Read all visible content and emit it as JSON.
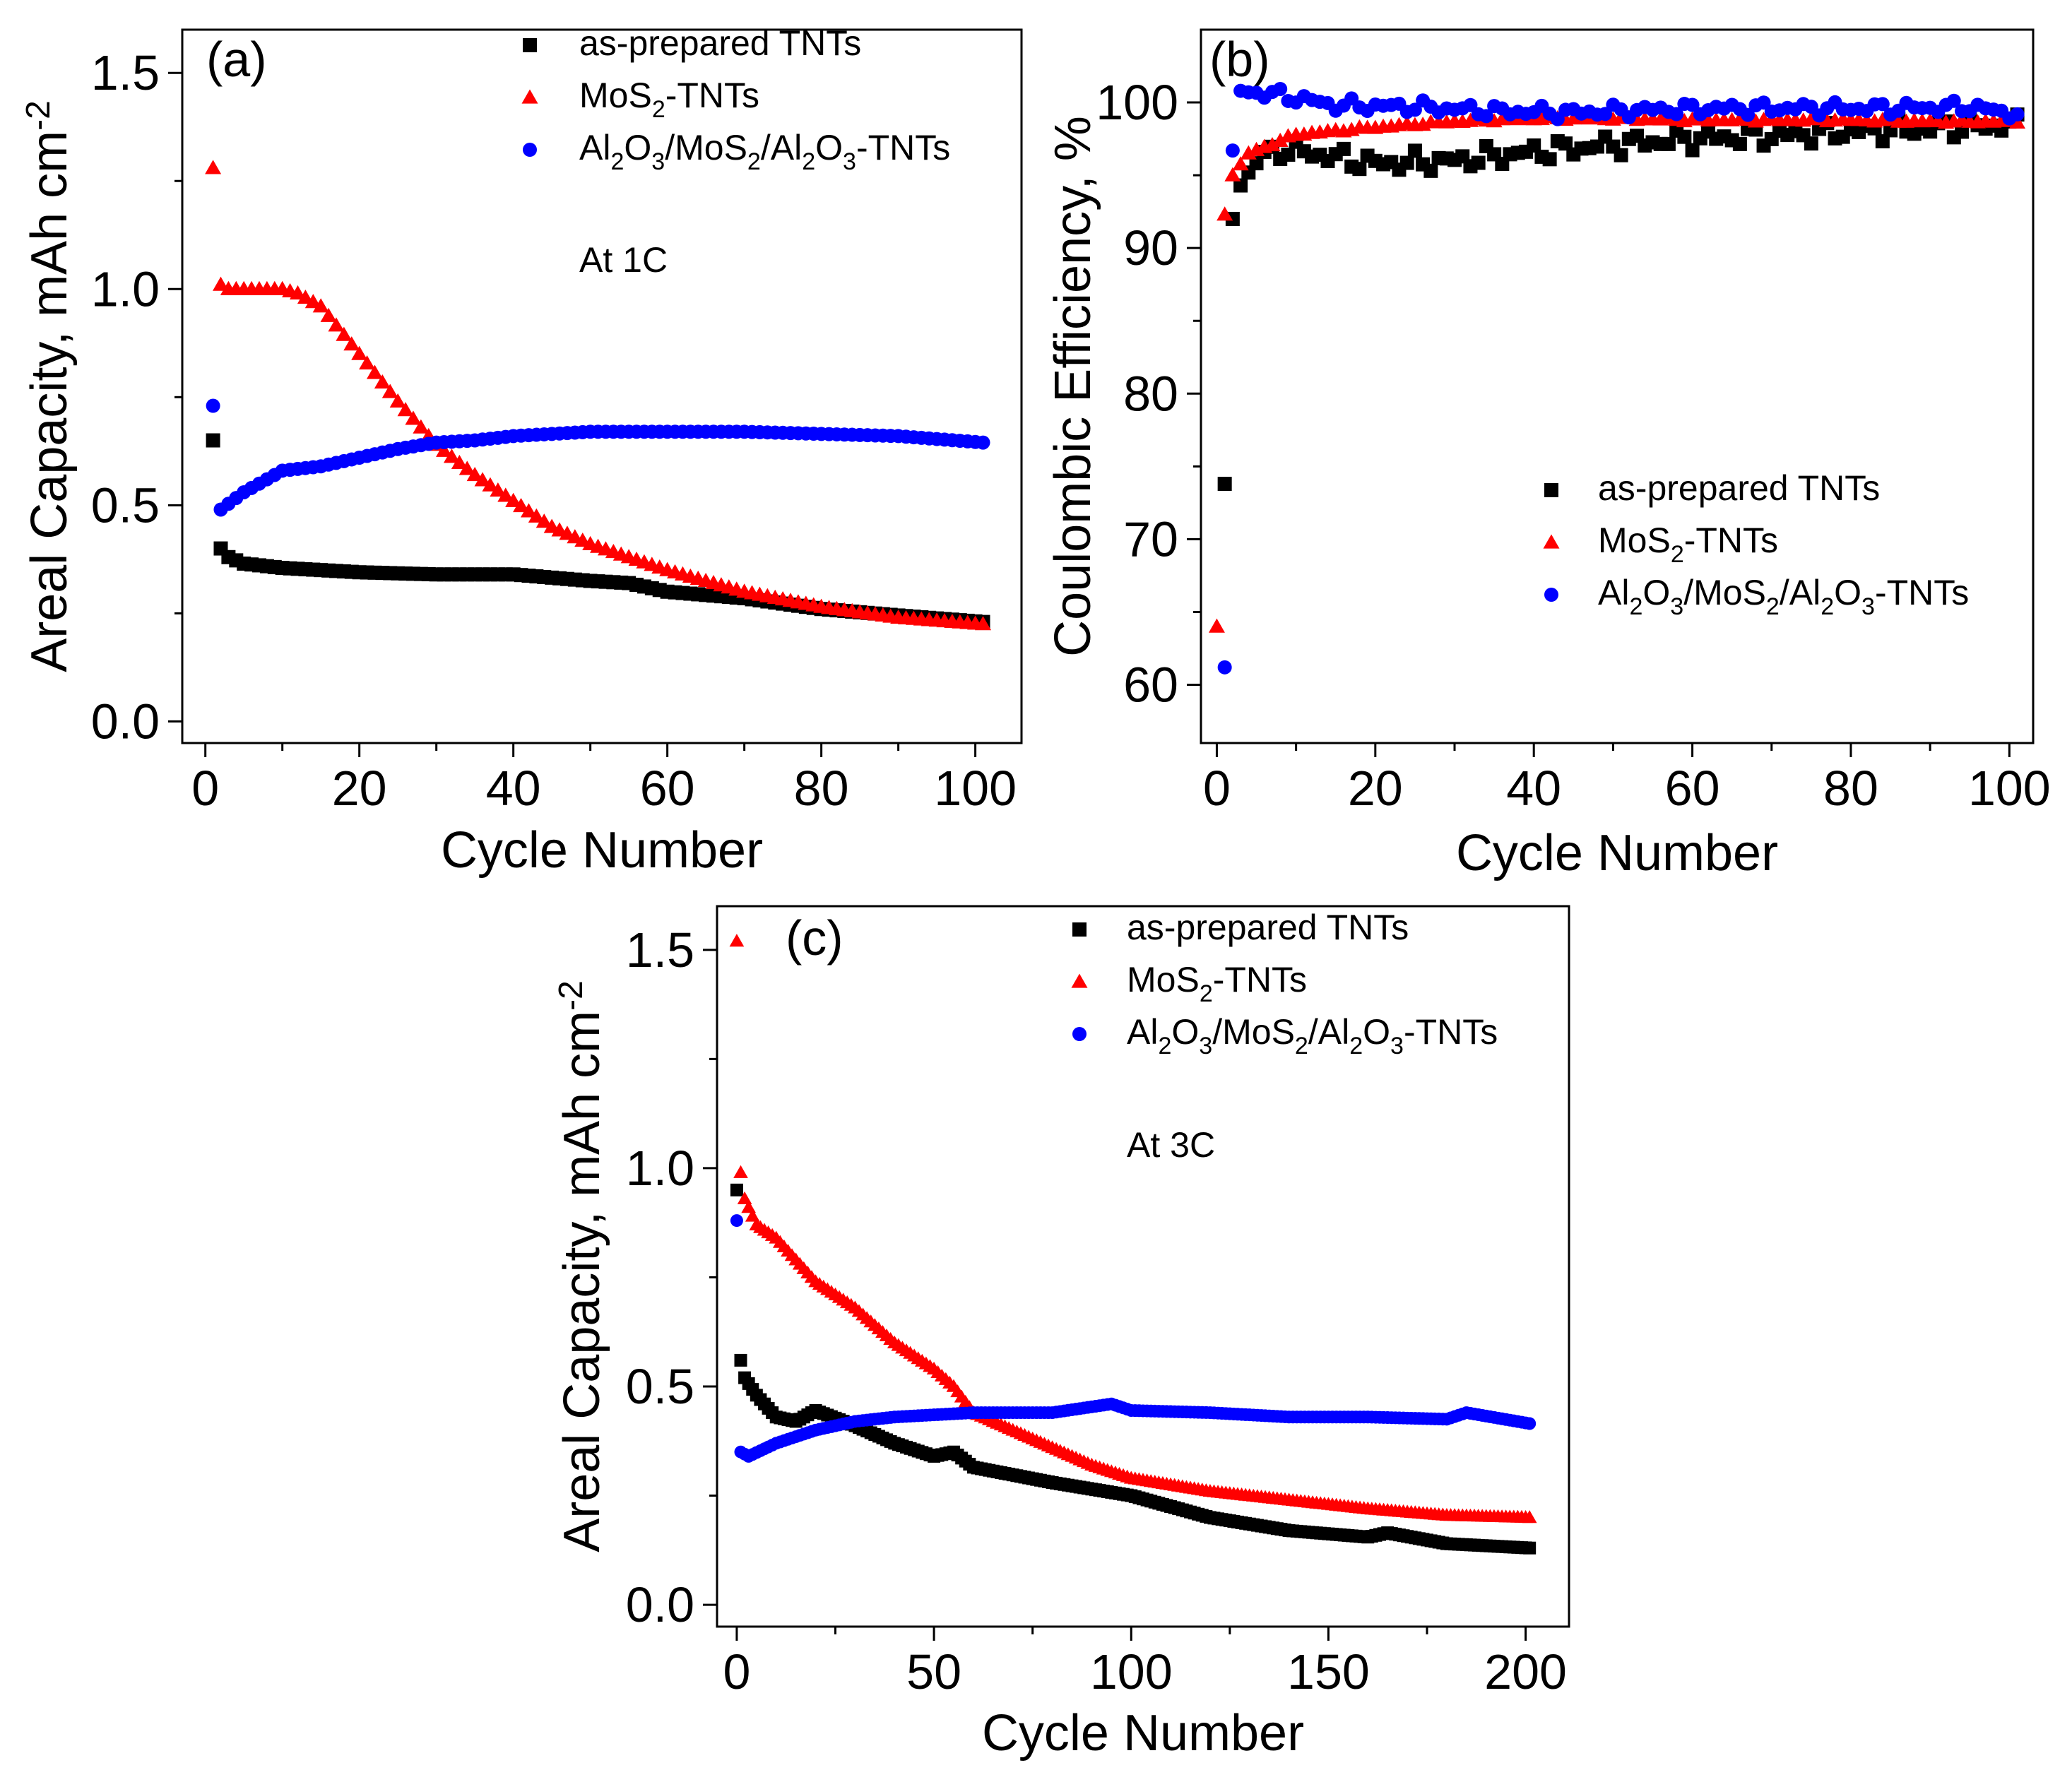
{
  "chart_data": [
    {
      "panel": "(a)",
      "type": "scatter",
      "note": "At 1C",
      "xlabel": "Cycle Number",
      "ylabel": "Areal Capacity, mAh cm-2",
      "ylabel_main": "Areal Capacity, mAh cm",
      "ylabel_sup": "-2",
      "xlim": [
        -3,
        106
      ],
      "ylim": [
        -0.05,
        1.6
      ],
      "xticks": [
        0,
        20,
        40,
        60,
        80,
        100
      ],
      "xtick_labels": [
        "0",
        "20",
        "40",
        "60",
        "80",
        "100"
      ],
      "yticks": [
        0.0,
        0.5,
        1.0,
        1.5
      ],
      "ytick_labels": [
        "0.0",
        "0.5",
        "1.0",
        "1.5"
      ],
      "legend": [
        {
          "label": "as-prepared TNTs",
          "parts": [
            [
              "as-prepared TNTs",
              ""
            ]
          ]
        },
        {
          "label": "MoS2-TNTs",
          "parts": [
            [
              "MoS",
              ""
            ],
            [
              "2",
              "sub"
            ],
            [
              "-TNTs",
              ""
            ]
          ]
        },
        {
          "label": "Al2O3/MoS2/Al2O3-TNTs",
          "parts": [
            [
              "Al",
              ""
            ],
            [
              "2",
              "sub"
            ],
            [
              "O",
              ""
            ],
            [
              "3",
              "sub"
            ],
            [
              "/MoS",
              ""
            ],
            [
              "2",
              "sub"
            ],
            [
              "/Al",
              ""
            ],
            [
              "2",
              "sub"
            ],
            [
              "O",
              ""
            ],
            [
              "3",
              "sub"
            ],
            [
              "-TNTs",
              ""
            ]
          ]
        }
      ],
      "series": [
        {
          "name": "as-prepared TNTs",
          "color": "#000000",
          "marker": "square",
          "anchors": [
            [
              1,
              0.65
            ],
            [
              2,
              0.4
            ],
            [
              3,
              0.38
            ],
            [
              5,
              0.365
            ],
            [
              10,
              0.355
            ],
            [
              20,
              0.345
            ],
            [
              30,
              0.34
            ],
            [
              40,
              0.34
            ],
            [
              50,
              0.325
            ],
            [
              55,
              0.32
            ],
            [
              60,
              0.3
            ],
            [
              70,
              0.285
            ],
            [
              80,
              0.26
            ],
            [
              90,
              0.245
            ],
            [
              101,
              0.23
            ]
          ]
        },
        {
          "name": "MoS2-TNTs",
          "color": "#ff0000",
          "marker": "triangle",
          "anchors": [
            [
              1,
              1.28
            ],
            [
              2,
              1.01
            ],
            [
              3,
              1.0
            ],
            [
              5,
              1.0
            ],
            [
              10,
              1.0
            ],
            [
              12,
              0.99
            ],
            [
              15,
              0.96
            ],
            [
              20,
              0.85
            ],
            [
              25,
              0.74
            ],
            [
              30,
              0.64
            ],
            [
              35,
              0.57
            ],
            [
              40,
              0.51
            ],
            [
              45,
              0.45
            ],
            [
              50,
              0.41
            ],
            [
              60,
              0.35
            ],
            [
              70,
              0.3
            ],
            [
              80,
              0.265
            ],
            [
              90,
              0.24
            ],
            [
              101,
              0.225
            ]
          ]
        },
        {
          "name": "Al2O3/MoS2/Al2O3-TNTs",
          "color": "#0000ff",
          "marker": "circle",
          "anchors": [
            [
              1,
              0.73
            ],
            [
              2,
              0.49
            ],
            [
              5,
              0.53
            ],
            [
              10,
              0.58
            ],
            [
              15,
              0.59
            ],
            [
              20,
              0.61
            ],
            [
              25,
              0.63
            ],
            [
              30,
              0.645
            ],
            [
              35,
              0.65
            ],
            [
              40,
              0.66
            ],
            [
              50,
              0.67
            ],
            [
              60,
              0.67
            ],
            [
              70,
              0.67
            ],
            [
              80,
              0.665
            ],
            [
              90,
              0.66
            ],
            [
              101,
              0.645
            ]
          ]
        }
      ]
    },
    {
      "panel": "(b)",
      "type": "scatter",
      "note": "",
      "xlabel": "Cycle Number",
      "ylabel": "Coulombic Efficiency, %",
      "ylabel_main": "Coulombic Efficiency, %",
      "ylabel_sup": "",
      "xlim": [
        -2,
        103
      ],
      "ylim": [
        56,
        105
      ],
      "xticks": [
        0,
        20,
        40,
        60,
        80,
        100
      ],
      "xtick_labels": [
        "0",
        "20",
        "40",
        "60",
        "80",
        "100"
      ],
      "yticks": [
        60,
        70,
        80,
        90,
        100
      ],
      "ytick_labels": [
        "60",
        "70",
        "80",
        "90",
        "100"
      ],
      "legend": [
        {
          "label": "as-prepared TNTs",
          "parts": [
            [
              "as-prepared TNTs",
              ""
            ]
          ]
        },
        {
          "label": "MoS2-TNTs",
          "parts": [
            [
              "MoS",
              ""
            ],
            [
              "2",
              "sub"
            ],
            [
              "-TNTs",
              ""
            ]
          ]
        },
        {
          "label": "Al2O3/MoS2/Al2O3-TNTs",
          "parts": [
            [
              "Al",
              ""
            ],
            [
              "2",
              "sub"
            ],
            [
              "O",
              ""
            ],
            [
              "3",
              "sub"
            ],
            [
              "/MoS",
              ""
            ],
            [
              "2",
              "sub"
            ],
            [
              "/Al",
              ""
            ],
            [
              "2",
              "sub"
            ],
            [
              "O",
              ""
            ],
            [
              "3",
              "sub"
            ],
            [
              "-TNTs",
              ""
            ]
          ]
        }
      ],
      "series": [
        {
          "name": "as-prepared TNTs",
          "color": "#000000",
          "marker": "square",
          "anchors": [
            [
              1,
              73.8
            ],
            [
              2,
              92
            ],
            [
              3,
              94.3
            ],
            [
              5,
              96
            ],
            [
              8,
              96.8
            ],
            [
              12,
              96.5
            ],
            [
              20,
              95.8
            ],
            [
              30,
              96
            ],
            [
              40,
              96.6
            ],
            [
              50,
              97.1
            ],
            [
              60,
              97.5
            ],
            [
              70,
              97.7
            ],
            [
              80,
              98
            ],
            [
              90,
              98.2
            ],
            [
              101,
              98.5
            ]
          ]
        },
        {
          "name": "MoS2-TNTs",
          "color": "#ff0000",
          "marker": "triangle",
          "anchors": [
            [
              0,
              64
            ],
            [
              1,
              92.3
            ],
            [
              2,
              95
            ],
            [
              4,
              96.5
            ],
            [
              10,
              97.8
            ],
            [
              20,
              98.3
            ],
            [
              30,
              98.7
            ],
            [
              40,
              98.9
            ],
            [
              50,
              98.9
            ],
            [
              60,
              98.8
            ],
            [
              70,
              98.8
            ],
            [
              80,
              98.8
            ],
            [
              90,
              98.7
            ],
            [
              101,
              98.7
            ]
          ]
        },
        {
          "name": "Al2O3/MoS2/Al2O3-TNTs",
          "color": "#0000ff",
          "marker": "circle",
          "anchors": [
            [
              1,
              61.2
            ],
            [
              2,
              96.7
            ],
            [
              3,
              100.8
            ],
            [
              8,
              100.5
            ],
            [
              15,
              99.8
            ],
            [
              25,
              99.7
            ],
            [
              35,
              99.4
            ],
            [
              45,
              99.3
            ],
            [
              55,
              99.5
            ],
            [
              65,
              99.6
            ],
            [
              75,
              99.6
            ],
            [
              85,
              99.6
            ],
            [
              95,
              99.7
            ],
            [
              101,
              99.2
            ]
          ]
        }
      ]
    },
    {
      "panel": "(c)",
      "type": "scatter",
      "note": "At 3C",
      "xlabel": "Cycle Number",
      "ylabel": "Areal Capacity, mAh cm-2",
      "ylabel_main": "Areal Capacity, mAh cm",
      "ylabel_sup": "-2",
      "xlim": [
        -5,
        211
      ],
      "ylim": [
        -0.05,
        1.6
      ],
      "xticks": [
        0,
        50,
        100,
        150,
        200
      ],
      "xtick_labels": [
        "0",
        "50",
        "100",
        "150",
        "200"
      ],
      "yticks": [
        0.0,
        0.5,
        1.0,
        1.5
      ],
      "ytick_labels": [
        "0.0",
        "0.5",
        "1.0",
        "1.5"
      ],
      "legend": [
        {
          "label": "as-prepared TNTs",
          "parts": [
            [
              "as-prepared TNTs",
              ""
            ]
          ]
        },
        {
          "label": "MoS2-TNTs",
          "parts": [
            [
              "MoS",
              ""
            ],
            [
              "2",
              "sub"
            ],
            [
              "-TNTs",
              ""
            ]
          ]
        },
        {
          "label": "Al2O3/MoS2/Al2O3-TNTs",
          "parts": [
            [
              "Al",
              ""
            ],
            [
              "2",
              "sub"
            ],
            [
              "O",
              ""
            ],
            [
              "3",
              "sub"
            ],
            [
              "/MoS",
              ""
            ],
            [
              "2",
              "sub"
            ],
            [
              "/Al",
              ""
            ],
            [
              "2",
              "sub"
            ],
            [
              "O",
              ""
            ],
            [
              "3",
              "sub"
            ],
            [
              "-TNTs",
              ""
            ]
          ]
        }
      ],
      "series": [
        {
          "name": "as-prepared TNTs",
          "color": "#000000",
          "marker": "square",
          "anchors": [
            [
              0,
              0.95
            ],
            [
              1,
              0.56
            ],
            [
              2,
              0.52
            ],
            [
              5,
              0.48
            ],
            [
              10,
              0.43
            ],
            [
              15,
              0.42
            ],
            [
              20,
              0.445
            ],
            [
              30,
              0.41
            ],
            [
              40,
              0.37
            ],
            [
              50,
              0.34
            ],
            [
              55,
              0.35
            ],
            [
              60,
              0.315
            ],
            [
              80,
              0.28
            ],
            [
              100,
              0.25
            ],
            [
              120,
              0.2
            ],
            [
              140,
              0.17
            ],
            [
              160,
              0.155
            ],
            [
              165,
              0.165
            ],
            [
              180,
              0.14
            ],
            [
              201,
              0.13
            ]
          ]
        },
        {
          "name": "MoS2-TNTs",
          "color": "#ff0000",
          "marker": "triangle",
          "anchors": [
            [
              0,
              1.52
            ],
            [
              1,
              0.99
            ],
            [
              2,
              0.93
            ],
            [
              5,
              0.87
            ],
            [
              10,
              0.84
            ],
            [
              20,
              0.74
            ],
            [
              30,
              0.68
            ],
            [
              40,
              0.6
            ],
            [
              50,
              0.54
            ],
            [
              55,
              0.5
            ],
            [
              60,
              0.44
            ],
            [
              70,
              0.4
            ],
            [
              80,
              0.36
            ],
            [
              90,
              0.32
            ],
            [
              100,
              0.29
            ],
            [
              120,
              0.26
            ],
            [
              140,
              0.24
            ],
            [
              160,
              0.22
            ],
            [
              180,
              0.205
            ],
            [
              201,
              0.2
            ]
          ]
        },
        {
          "name": "Al2O3/MoS2/Al2O3-TNTs",
          "color": "#0000ff",
          "marker": "circle",
          "anchors": [
            [
              0,
              0.88
            ],
            [
              1,
              0.35
            ],
            [
              3,
              0.34
            ],
            [
              10,
              0.37
            ],
            [
              20,
              0.4
            ],
            [
              30,
              0.42
            ],
            [
              40,
              0.43
            ],
            [
              60,
              0.44
            ],
            [
              80,
              0.44
            ],
            [
              95,
              0.46
            ],
            [
              100,
              0.445
            ],
            [
              120,
              0.44
            ],
            [
              140,
              0.43
            ],
            [
              160,
              0.43
            ],
            [
              180,
              0.425
            ],
            [
              185,
              0.44
            ],
            [
              201,
              0.415
            ]
          ]
        }
      ]
    }
  ]
}
